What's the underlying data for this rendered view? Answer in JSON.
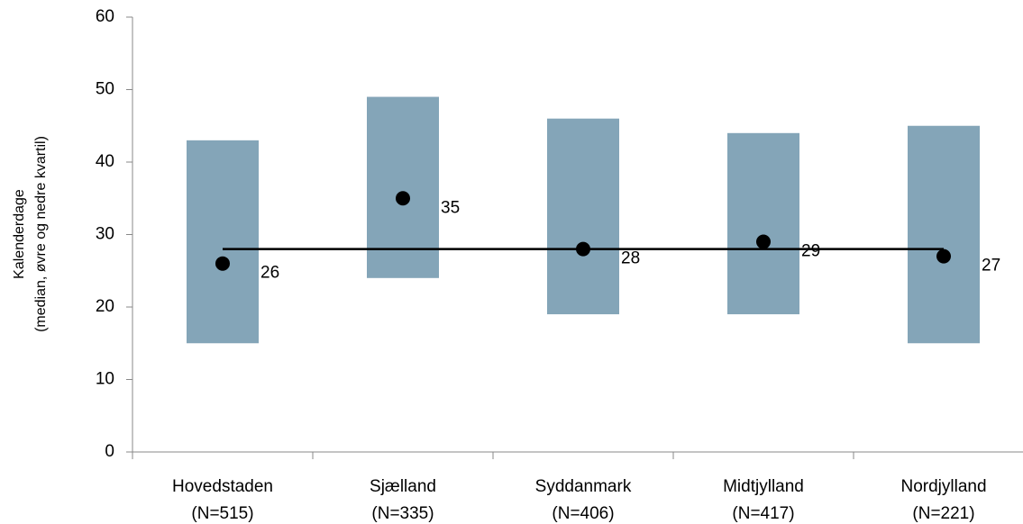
{
  "chart_data": {
    "type": "floating-bar",
    "ylabel": [
      "Kalenderdage",
      "(median, øvre og nedre kvartil)"
    ],
    "categories": [
      [
        "Hovedstaden",
        "(N=515)"
      ],
      [
        "Sjælland",
        "(N=335)"
      ],
      [
        "Syddanmark",
        "(N=406)"
      ],
      [
        "Midtjylland",
        "(N=417)"
      ],
      [
        "Nordjylland",
        "(N=221)"
      ]
    ],
    "series": [
      {
        "name": "nedre kvartil",
        "values": [
          15,
          24,
          19,
          19,
          15
        ]
      },
      {
        "name": "øvre kvartil",
        "values": [
          43,
          49,
          46,
          44,
          45
        ]
      },
      {
        "name": "median",
        "values": [
          26,
          35,
          28,
          29,
          27
        ]
      }
    ],
    "bar_color": "#84a5b8",
    "median_color": "#000000",
    "reference_line": 28,
    "ylim": [
      0,
      60
    ],
    "yticks": [
      0,
      10,
      20,
      30,
      40,
      50,
      60
    ]
  }
}
